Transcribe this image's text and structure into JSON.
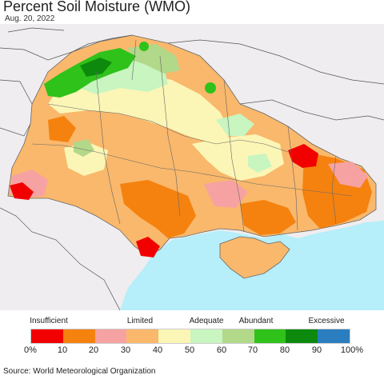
{
  "title": "Percent Soil Moisture (WMO)",
  "date": "Aug. 20, 2022",
  "legend": {
    "categories": [
      "Insufficient",
      "Limited",
      "Adequate",
      "Abundant",
      "Excessive"
    ],
    "ticks": [
      "0%",
      "10",
      "20",
      "30",
      "40",
      "50",
      "60",
      "70",
      "80",
      "90",
      "100%"
    ],
    "colors": [
      "#f20000",
      "#f5820f",
      "#f7a2a2",
      "#f9b86c",
      "#fbf6b6",
      "#c8f5c0",
      "#b2d88a",
      "#2fc21a",
      "#0d8a0d",
      "#2a7ec0"
    ]
  },
  "colors": {
    "sea": "#b6eefa",
    "neighbor_land": "#efedef",
    "border": "#555555"
  },
  "source": "Source: World Meteorological Organization"
}
